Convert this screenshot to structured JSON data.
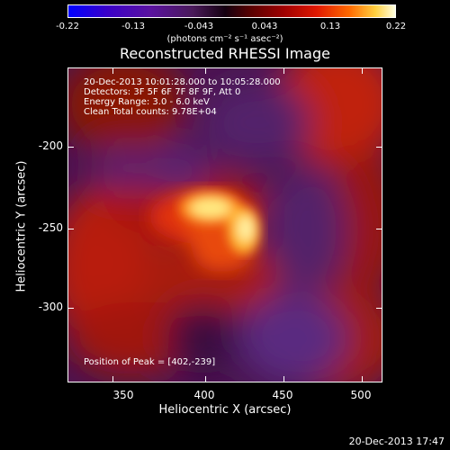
{
  "colorbar": {
    "ticks": [
      "-0.22",
      "-0.13",
      "-0.043",
      "0.043",
      "0.13",
      "0.22"
    ],
    "units": "(photons cm⁻² s⁻¹ asec⁻²)"
  },
  "title": "Reconstructed RHESSI Image",
  "info": {
    "time_range": "20-Dec-2013 10:01:28.000 to 10:05:28.000",
    "detectors": "Detectors: 3F 5F 6F 7F 8F 9F, Att 0",
    "energy": "Energy Range: 3.0 - 6.0 keV",
    "method": "Clean     Total counts: 9.78E+04"
  },
  "peak": "Position of Peak = [402,-239]",
  "axes": {
    "xlabel": "Heliocentric X (arcsec)",
    "ylabel": "Heliocentric Y (arcsec)",
    "x_ticks": [
      "350",
      "400",
      "450",
      "500"
    ],
    "y_ticks": [
      "-200",
      "-250",
      "-300"
    ]
  },
  "timestamp": "20-Dec-2013 17:47",
  "colors": {
    "background": "#000000",
    "frame": "#ffffff"
  }
}
